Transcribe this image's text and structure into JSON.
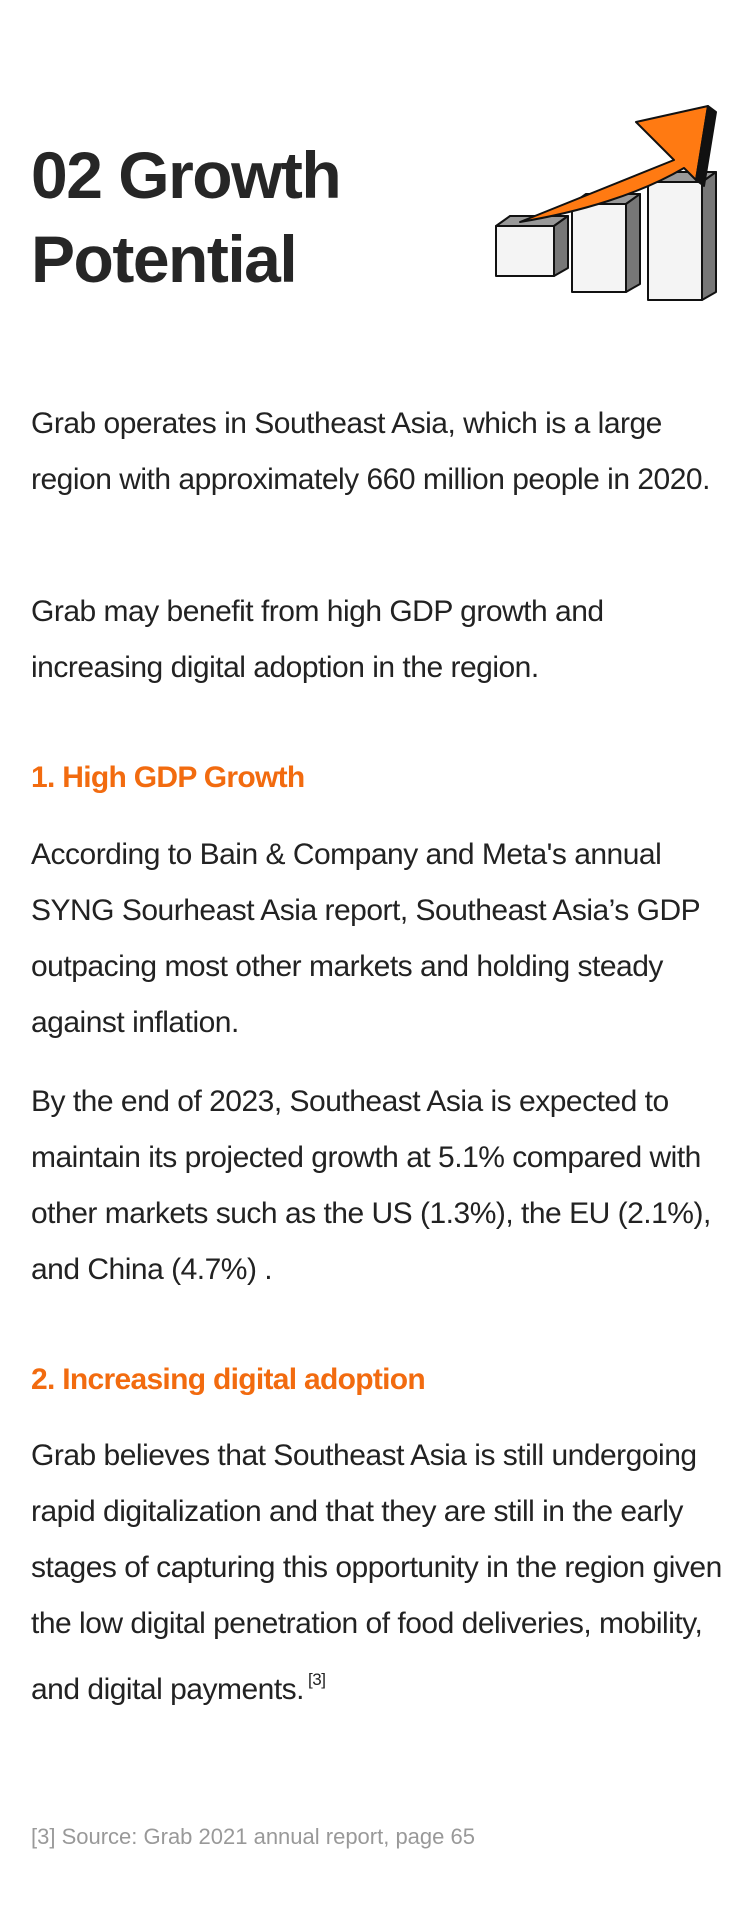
{
  "header": {
    "title_lines": [
      "02 Growth",
      "Potential"
    ]
  },
  "intro": [
    "Grab operates in Southeast Asia, which is a large region with approximately 660 million people in 2020.",
    "Grab may benefit from high GDP growth and increasing digital adoption in the region."
  ],
  "sections": [
    {
      "heading": "1. High GDP Growth",
      "paragraphs": [
        "According to Bain & Company and Meta's annual SYNG Sourheast Asia report, Southeast Asia’s GDP outpacing most other markets and holding steady against inflation.",
        "By the end of 2023, Southeast Asia is expected to maintain its projected growth at 5.1% compared with other markets such as the US (1.3%), the EU (2.1%), and China (4.7%) ."
      ]
    },
    {
      "heading": "2. Increasing digital adoption",
      "paragraphs": [
        "Grab believes that Southeast Asia is still undergoing rapid digitalization and that they are still in the early stages of capturing this opportunity in the region given the low digital penetration of food deliveries, mobility, and digital payments."
      ],
      "footnote_ref": "[3]"
    }
  ],
  "footnote": "[3] Source: Grab 2021 annual report, page 65"
}
